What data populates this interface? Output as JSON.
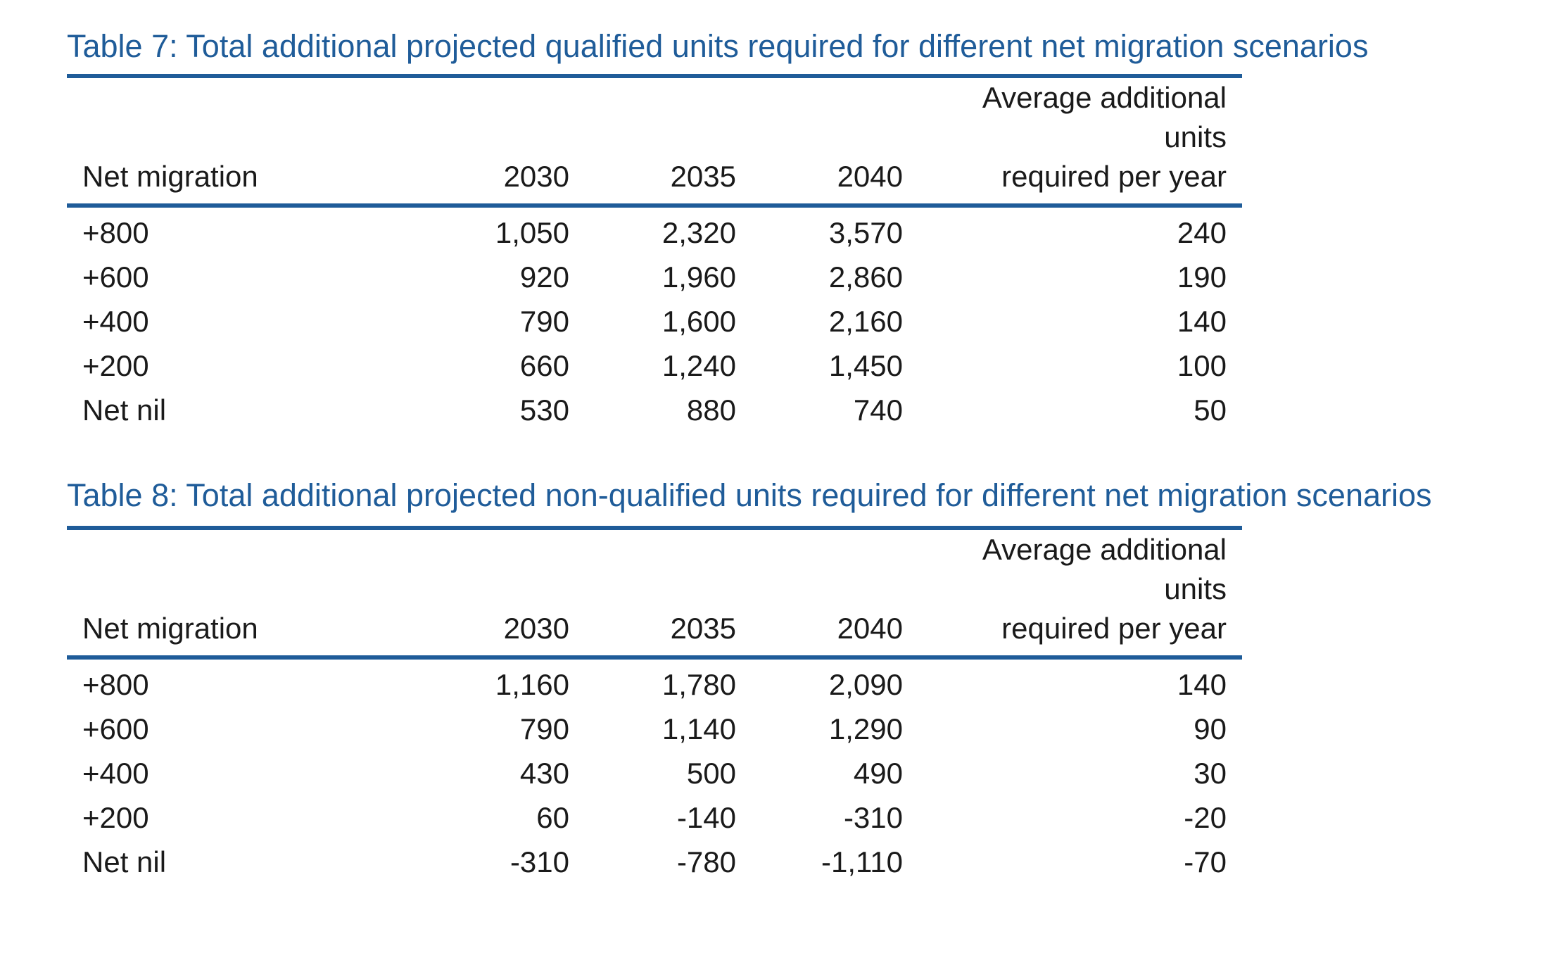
{
  "tables": [
    {
      "caption": "Table 7: Total additional projected qualified units required for different net migration scenarios",
      "headers": {
        "col0": "Net migration",
        "col1": "2030",
        "col2": "2035",
        "col3": "2040",
        "col4_line1": "Average additional units",
        "col4_line2": "required per year"
      },
      "rows": [
        {
          "label": "+800",
          "v2030": "1,050",
          "v2035": "2,320",
          "v2040": "3,570",
          "avg": "240"
        },
        {
          "label": "+600",
          "v2030": "920",
          "v2035": "1,960",
          "v2040": "2,860",
          "avg": "190"
        },
        {
          "label": "+400",
          "v2030": "790",
          "v2035": "1,600",
          "v2040": "2,160",
          "avg": "140"
        },
        {
          "label": "+200",
          "v2030": "660",
          "v2035": "1,240",
          "v2040": "1,450",
          "avg": "100"
        },
        {
          "label": "Net nil",
          "v2030": "530",
          "v2035": "880",
          "v2040": "740",
          "avg": "50"
        }
      ]
    },
    {
      "caption": "Table 8: Total additional projected non-qualified units required for different net migration scenarios",
      "headers": {
        "col0": "Net migration",
        "col1": "2030",
        "col2": "2035",
        "col3": "2040",
        "col4_line1": "Average additional units",
        "col4_line2": "required per year"
      },
      "rows": [
        {
          "label": "+800",
          "v2030": "1,160",
          "v2035": "1,780",
          "v2040": "2,090",
          "avg": "140"
        },
        {
          "label": "+600",
          "v2030": "790",
          "v2035": "1,140",
          "v2040": "1,290",
          "avg": "90"
        },
        {
          "label": "+400",
          "v2030": "430",
          "v2035": "500",
          "v2040": "490",
          "avg": "30"
        },
        {
          "label": "+200",
          "v2030": "60",
          "v2035": "-140",
          "v2040": "-310",
          "avg": "-20"
        },
        {
          "label": "Net nil",
          "v2030": "-310",
          "v2035": "-780",
          "v2040": "-1,110",
          "avg": "-70"
        }
      ]
    }
  ],
  "colors": {
    "accent": "#1f5c99",
    "text": "#1a1a1a"
  }
}
